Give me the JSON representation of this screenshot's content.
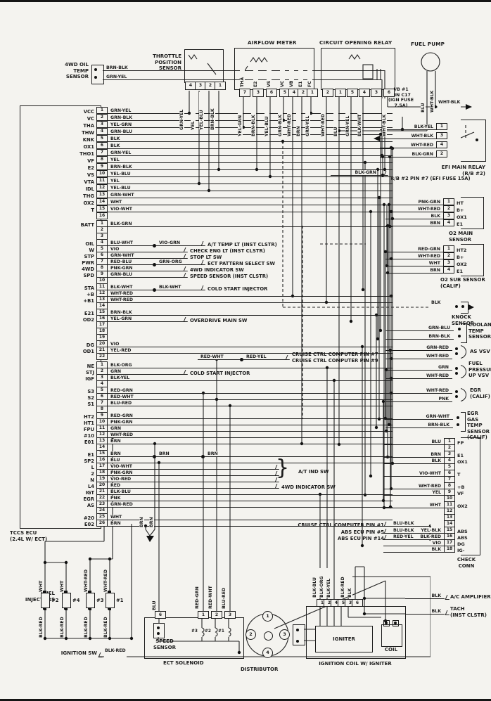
{
  "paper_color": "#f4f3ef",
  "ink_color": "#1c1c1c",
  "ecu": {
    "label": "TCCS ECU\n(2.4L W/ ECT)",
    "overlay": {
      "brace": "}",
      "at_ind_sw": "A/T IND SW"
    },
    "conn1": [
      {
        "n": "1",
        "t": "VCC",
        "w": "GRN-YEL"
      },
      {
        "n": "2",
        "t": "VC",
        "w": "GRN-BLK"
      },
      {
        "n": "3",
        "t": "THA",
        "w": "YEL-GRN"
      },
      {
        "n": "4",
        "t": "THW",
        "w": "GRN-BLU"
      },
      {
        "n": "5",
        "t": "KNK",
        "w": "BLK"
      },
      {
        "n": "6",
        "t": "OX1",
        "w": "BLK"
      },
      {
        "n": "7",
        "t": "THO1",
        "w": "GRN-YEL"
      },
      {
        "n": "8",
        "t": "VF",
        "w": "YEL"
      },
      {
        "n": "9",
        "t": "E2",
        "w": "BRN-BLK"
      },
      {
        "n": "10",
        "t": "VS",
        "w": "YEL-BLU"
      },
      {
        "n": "11",
        "t": "VTA",
        "w": "YEL"
      },
      {
        "n": "12",
        "t": "IDL",
        "w": "YEL-BLU"
      },
      {
        "n": "13",
        "t": "THG",
        "w": "GRN-WHT"
      },
      {
        "n": "14",
        "t": "OX2",
        "w": "WHT"
      },
      {
        "n": "15",
        "t": "T",
        "w": "VIO-WHT"
      },
      {
        "n": "16"
      }
    ],
    "conn2": [
      {
        "n": "1",
        "t": "BATT",
        "w": "BLK-GRN"
      },
      {
        "n": "2"
      },
      {
        "n": "3"
      },
      {
        "n": "4",
        "t": "OIL",
        "w": "BLU-WHT",
        "m": "VIO-GRN",
        "tg": "A/T TEMP LT (INST CLSTR)"
      },
      {
        "n": "5",
        "t": "W",
        "w": "VIO",
        "tg": "CHECK ENG LT (INST CLSTR)"
      },
      {
        "n": "6",
        "t": "STP",
        "w": "GRN-WHT",
        "tg": "STOP LT SW"
      },
      {
        "n": "7",
        "t": "PWR",
        "w": "RED-BLU",
        "m": "GRN-ORG",
        "tg": "ECT PATTERN SELECT SW"
      },
      {
        "n": "8",
        "t": "4WD",
        "w": "PNK-GRN",
        "tg": "4WD INDICATOR SW"
      },
      {
        "n": "9",
        "t": "SPD",
        "w": "GRN-BLU",
        "tg": "SPEED SENSOR (INST CLSTR)"
      },
      {
        "n": "10"
      },
      {
        "n": "11",
        "t": "STA",
        "w": "BLK-WHT",
        "m": "BLK-WHT",
        "tg": "COLD START INJECTOR"
      },
      {
        "n": "12",
        "t": "+B",
        "w": "WHT-RED"
      },
      {
        "n": "13",
        "t": "+B1",
        "w": "WHT-RED"
      },
      {
        "n": "14"
      },
      {
        "n": "15",
        "t": "E21",
        "w": "BRN-BLK"
      },
      {
        "n": "16",
        "t": "OD2",
        "w": "YEL-GRN",
        "tg": "OVERDRIVE MAIN SW"
      },
      {
        "n": "17"
      },
      {
        "n": "18"
      },
      {
        "n": "19"
      },
      {
        "n": "20",
        "t": "DG",
        "w": "VIO"
      },
      {
        "n": "21",
        "t": "OD1",
        "w": "YEL-RED"
      },
      {
        "n": "22",
        "s": "indent",
        "w": "RED-WHT",
        "m": "RED-YEL",
        "tg": "CRUISE CTRL COMPUTER PIN #9",
        "tg2": "CRUISE CTRL COMPUTER PIN #7"
      }
    ],
    "conn3": [
      {
        "n": "1",
        "t": "NE",
        "w": "BLK-ORG"
      },
      {
        "n": "2",
        "t": "STJ",
        "w": "GRN",
        "tg": "COLD START INJECTOR"
      },
      {
        "n": "3",
        "t": "IGF",
        "w": "BLK-YEL"
      },
      {
        "n": "4"
      },
      {
        "n": "5",
        "t": "S3",
        "w": "RED-GRN"
      },
      {
        "n": "6",
        "t": "S2",
        "w": "RED-WHT"
      },
      {
        "n": "7",
        "t": "S1",
        "w": "BLU-RED"
      },
      {
        "n": "8"
      },
      {
        "n": "9",
        "t": "HT2",
        "w": "RED-GRN"
      },
      {
        "n": "10",
        "t": "HT1",
        "w": "PNK-GRN"
      },
      {
        "n": "11",
        "t": "FPU",
        "w": "GRN"
      },
      {
        "n": "12",
        "t": "#10",
        "w": "WHT-RED"
      },
      {
        "n": "13",
        "t": "E01",
        "w": "BRN"
      },
      {
        "n": "14"
      },
      {
        "n": "15",
        "t": "E1",
        "w": "BRN",
        "m": "BRN",
        "m2": "BRN"
      },
      {
        "n": "16",
        "t": "SP2",
        "w": "BLU"
      },
      {
        "n": "17",
        "t": "L",
        "w": "VIO-WHT",
        "s": "short"
      },
      {
        "n": "18",
        "t": "2",
        "w": "PNK-GRN",
        "s": "short"
      },
      {
        "n": "19",
        "t": "N",
        "w": "VIO-RED",
        "s": "short"
      },
      {
        "n": "20",
        "t": "L4",
        "w": "RED",
        "s": "short",
        "tg": "4WD INDICATOR SW"
      },
      {
        "n": "21",
        "t": "IGT",
        "w": "BLK-BLU"
      },
      {
        "n": "22",
        "t": "EGR",
        "w": "PNK"
      },
      {
        "n": "23",
        "t": "AS",
        "w": "GRN-RED"
      },
      {
        "n": "24"
      },
      {
        "n": "25",
        "t": "#20",
        "w": "WHT"
      },
      {
        "n": "26",
        "t": "E02",
        "w": "BRN"
      }
    ]
  },
  "top": {
    "oil_temp_sensor": {
      "label": "4WD OIL\nTEMP\nSENSOR",
      "wires": [
        "BRN-BLK",
        "GRN-YEL"
      ]
    },
    "tps": {
      "title": "THROTTLE\nPOSITION\nSENSOR",
      "pins": [
        "4",
        "3",
        "2",
        "1"
      ],
      "wires": [
        "GRN-YEL",
        "YEL",
        "YEL-BLU",
        "BRN-BLK"
      ]
    },
    "afm": {
      "title": "AIRFLOW METER",
      "terminals": [
        "THA",
        "E2",
        "VS",
        "VC",
        "VB",
        "E1",
        "FC"
      ],
      "pins": [
        "7",
        "3",
        "6",
        "5",
        "4",
        "2",
        "1"
      ],
      "wires": [
        "YEL-GRN",
        "BRN-BLK",
        "YEL-BLU",
        "GRN-BLK",
        "WHT-RED",
        "BRN",
        "GRN-YEL"
      ]
    },
    "cor": {
      "title": "CIRCUIT OPENING RELAY",
      "pins": [
        "2",
        "1",
        "5",
        "4",
        "3",
        "6"
      ],
      "wires": [
        "WHT-RED",
        "BLU",
        "GRN-YEL",
        "BLK-WHT",
        "WHT-BLK"
      ]
    },
    "fuel_pump": {
      "title": "FUEL PUMP",
      "wires": [
        "BLU",
        "WHT-BLK"
      ]
    },
    "jb1": {
      "text": "J/B #1\nPIN C17\n(IGN FUSE\n7.5A)"
    },
    "whtblk_feed": "WHT-BLK"
  },
  "right": {
    "efi_relay": {
      "name": "EFI MAIN RELAY\n(R/B #2)",
      "pins": [
        {
          "w": "BLK-YEL",
          "n": "1"
        },
        {
          "w": "WHT-BLK",
          "n": "3"
        },
        {
          "w": "WHT-RED",
          "n": "4"
        },
        {
          "w": "BLK-GRN",
          "n": "2"
        }
      ]
    },
    "rb2": {
      "wire": "BLK-GRN",
      "text": "R/B #2 PIN #7\n(EFI FUSE 15A)"
    },
    "o2_main": {
      "name": "O2 MAIN\nSENSOR",
      "pins": [
        {
          "w": "PNK-GRN",
          "n": "1",
          "t": "HT"
        },
        {
          "w": "WHT-RED",
          "n": "2",
          "t": "B+"
        },
        {
          "w": "BLK",
          "n": "3",
          "t": "OX1"
        },
        {
          "w": "BRN",
          "n": "4",
          "t": "E1"
        }
      ]
    },
    "o2_sub": {
      "name": "O2 SUB SENSOR\n(CALIF)",
      "pins": [
        {
          "w": "RED-GRN",
          "n": "1",
          "t": "HT2"
        },
        {
          "w": "WHT-RED",
          "n": "2",
          "t": "B+"
        },
        {
          "w": "WHT",
          "n": "3",
          "t": "OX2"
        },
        {
          "w": "BRN",
          "n": "4",
          "t": "E1"
        }
      ]
    },
    "knock": {
      "wire": "BLK",
      "name": "KNOCK\nSENSOR"
    },
    "coolant": {
      "wires": [
        "GRN-BLU",
        "BRN-BLK"
      ],
      "name": "COOLANT\nTEMP\nSENSOR"
    },
    "as_vsv": {
      "wires": [
        "GRN-RED",
        "WHT-RED"
      ],
      "name": "AS VSV"
    },
    "fpu_vsv": {
      "wires": [
        "GRN",
        "WHT-RED"
      ],
      "name": "FUEL\nPRESSURE\nUP VSV"
    },
    "egr": {
      "wires": [
        "WHT-RED",
        "PNK"
      ],
      "name": "EGR\n(CALIF)"
    },
    "egr_gas": {
      "wires": [
        "GRN-WHT",
        "BRN-BLK"
      ],
      "name": "EGR GAS\nTEMP SENSOR\n(CALIF)"
    },
    "check_conn": {
      "name": "CHECK\nCONN",
      "pins": [
        {
          "w": "BLU",
          "n": "1",
          "t": "FP"
        },
        {
          "n": "2"
        },
        {
          "w": "BRN",
          "n": "3",
          "t": "E1"
        },
        {
          "w": "BLK",
          "n": "4",
          "t": "OX1"
        },
        {
          "n": "5"
        },
        {
          "w": "VIO-WHT",
          "n": "6",
          "t": "T"
        },
        {
          "n": "7"
        },
        {
          "w": "WHT-RED",
          "n": "8",
          "t": "+B"
        },
        {
          "w": "YEL",
          "n": "9",
          "t": "VF"
        },
        {
          "n": "10"
        },
        {
          "w": "WHT",
          "n": "11",
          "t": "OX2"
        },
        {
          "n": "12"
        },
        {
          "n": "13"
        },
        {
          "n": "14"
        },
        {
          "w": "YEL-BLK",
          "n": "15",
          "t": "ABS"
        },
        {
          "w": "BLK-RED",
          "n": "16",
          "t": "ABS"
        },
        {
          "w": "VIO",
          "n": "17",
          "t": "DG"
        },
        {
          "w": "BLK",
          "n": "18",
          "t": "IG-"
        }
      ]
    },
    "cruise_abs": [
      {
        "text": "CRUISE CTRL COMPUTER PIN #1",
        "wire": "BLU-BLK"
      },
      {
        "text": "ABS ECU PIN #5",
        "wire": "BLU-BLK"
      },
      {
        "text": "ABS ECU PIN #14",
        "wire": "RED-YEL"
      }
    ],
    "ac_amp": {
      "wire": "BLK",
      "name": "A/C AMPLIFIER"
    },
    "tach": {
      "wire": "BLK",
      "name": "TACH\n(INST CLSTR)"
    }
  },
  "bottom": {
    "injectors": {
      "label": "FUEL\nINJECTORS",
      "items": [
        {
          "top": "WHT",
          "num": "#2",
          "bot": "BLK-RED"
        },
        {
          "top": "WHT",
          "num": "#4",
          "bot": "BLK-RED"
        },
        {
          "top": "WHT-RED",
          "num": "#3",
          "bot": "BLK-RED"
        },
        {
          "top": "WHT-RED",
          "num": "#1",
          "bot": "BLK-RED"
        }
      ]
    },
    "ignition_sw": {
      "label": "IGNITION SW",
      "wire": "BLK-RED"
    },
    "speed_sensor": {
      "name": "SPEED\nSENSOR",
      "pin": "6",
      "wire": "BLU"
    },
    "ect": {
      "name": "ECT SOLENOID",
      "pins": [
        "1",
        "2",
        "3"
      ],
      "wires": [
        "RED-GRN",
        "RED-WHT",
        "BLU-RED"
      ],
      "sols": [
        "#3",
        "#2",
        "#1"
      ]
    },
    "distributor": {
      "name": "DISTRIBUTOR",
      "pins": [
        "1",
        "2",
        "3",
        "4"
      ]
    },
    "coil_igniter": {
      "name": "IGNITION COIL W/ IGNITER",
      "igniter": "IGNITER",
      "coil": "COIL",
      "pins": [
        "1",
        "2",
        "4",
        "5",
        "3",
        "6"
      ],
      "wires": [
        "BLK-BLU",
        "BLK-ORG",
        "BLK-YEL",
        "",
        "BLK-RED",
        "BLK"
      ]
    },
    "brn_pair": [
      "BRN",
      "BRN"
    ]
  }
}
